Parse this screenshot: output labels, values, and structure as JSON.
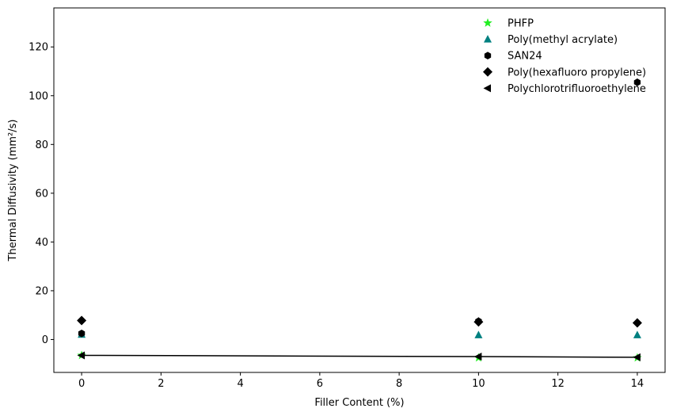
{
  "chart_data": {
    "type": "scatter",
    "title": "",
    "xlabel": "Filler Content (%)",
    "ylabel": "Thermal Diffusivity (mm²/s)",
    "xlim": [
      -0.7,
      14.7
    ],
    "ylim": [
      -13.5,
      136
    ],
    "xticks": [
      0,
      2,
      4,
      6,
      8,
      10,
      12,
      14
    ],
    "yticks": [
      0,
      20,
      40,
      60,
      80,
      100,
      120
    ],
    "grid": false,
    "legend_position": "top-right",
    "series": [
      {
        "name": "PHFP",
        "marker": "star",
        "color": "#22ee22",
        "x": [
          0,
          10,
          14
        ],
        "y": [
          -6.5,
          -7.5,
          -7.5
        ]
      },
      {
        "name": "Poly(methyl acrylate)",
        "marker": "triangle-up",
        "color": "#008080",
        "x": [
          0,
          10,
          14
        ],
        "y": [
          2.0,
          1.8,
          1.8
        ]
      },
      {
        "name": "SAN24",
        "marker": "hexagon",
        "color": "#000000",
        "x": [
          0,
          10,
          14
        ],
        "y": [
          2.5,
          7.5,
          105.5
        ]
      },
      {
        "name": "Poly(hexafluoro propylene)",
        "marker": "diamond",
        "color": "#000000",
        "x": [
          0,
          10,
          14
        ],
        "y": [
          7.8,
          7.2,
          6.8
        ]
      },
      {
        "name": "Polychlorotrifluoroethylene",
        "marker": "triangle-left",
        "color": "#000000",
        "x": [
          0,
          10,
          14
        ],
        "y": [
          -6.5,
          -7.0,
          -7.3
        ],
        "line": true
      }
    ]
  }
}
